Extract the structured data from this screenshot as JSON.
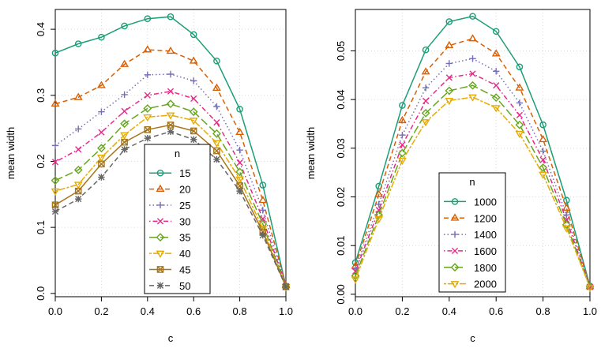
{
  "chart_data": [
    {
      "type": "line",
      "xlabel": "c",
      "ylabel": "mean width",
      "xlim": [
        0,
        1
      ],
      "ylim": [
        -0.005,
        0.43
      ],
      "xticks": [
        "0.0",
        "0.2",
        "0.4",
        "0.6",
        "0.8",
        "1.0"
      ],
      "yticks": [
        "0.0",
        "0.1",
        "0.2",
        "0.3",
        "0.4"
      ],
      "grid": true,
      "legend_title": "n",
      "legend_position": "bottom-center",
      "x": [
        0,
        0.1,
        0.2,
        0.3,
        0.4,
        0.5,
        0.6,
        0.7,
        0.8,
        0.9,
        1.0
      ],
      "series": [
        {
          "name": "15",
          "color": "#1b9e77",
          "marker": "circle",
          "dash": "solid",
          "values": [
            0.364,
            0.378,
            0.388,
            0.405,
            0.416,
            0.419,
            0.392,
            0.352,
            0.279,
            0.164,
            0.011
          ]
        },
        {
          "name": "20",
          "color": "#d95f02",
          "marker": "triangle-up",
          "dash": "dashed",
          "values": [
            0.287,
            0.297,
            0.315,
            0.347,
            0.369,
            0.367,
            0.352,
            0.311,
            0.244,
            0.141,
            0.012
          ]
        },
        {
          "name": "25",
          "color": "#7570b3",
          "marker": "plus",
          "dash": "dotted",
          "values": [
            0.224,
            0.249,
            0.275,
            0.301,
            0.331,
            0.332,
            0.322,
            0.283,
            0.217,
            0.126,
            0.012
          ]
        },
        {
          "name": "30",
          "color": "#e7298a",
          "marker": "cross",
          "dash": "dotdash",
          "values": [
            0.199,
            0.218,
            0.244,
            0.276,
            0.3,
            0.306,
            0.295,
            0.259,
            0.198,
            0.113,
            0.011
          ]
        },
        {
          "name": "35",
          "color": "#66a61e",
          "marker": "diamond",
          "dash": "longdash",
          "values": [
            0.171,
            0.187,
            0.22,
            0.257,
            0.28,
            0.287,
            0.275,
            0.242,
            0.184,
            0.105,
            0.01
          ]
        },
        {
          "name": "40",
          "color": "#e6ab02",
          "marker": "triangle-down",
          "dash": "twodash",
          "values": [
            0.155,
            0.165,
            0.206,
            0.24,
            0.267,
            0.27,
            0.262,
            0.228,
            0.173,
            0.098,
            0.01
          ]
        },
        {
          "name": "45",
          "color": "#a6761d",
          "marker": "square-cross",
          "dash": "solid",
          "values": [
            0.134,
            0.155,
            0.196,
            0.229,
            0.248,
            0.255,
            0.246,
            0.216,
            0.163,
            0.093,
            0.01
          ]
        },
        {
          "name": "50",
          "color": "#666666",
          "marker": "asterisk",
          "dash": "dashed",
          "values": [
            0.124,
            0.143,
            0.176,
            0.218,
            0.235,
            0.245,
            0.233,
            0.203,
            0.155,
            0.088,
            0.01
          ]
        }
      ]
    },
    {
      "type": "line",
      "xlabel": "c",
      "ylabel": "mean width",
      "xlim": [
        0,
        1
      ],
      "ylim": [
        -0.0005,
        0.0585
      ],
      "xticks": [
        "0.0",
        "0.2",
        "0.4",
        "0.6",
        "0.8",
        "1.0"
      ],
      "yticks": [
        "0.00",
        "0.01",
        "0.02",
        "0.03",
        "0.04",
        "0.05"
      ],
      "grid": true,
      "legend_title": "n",
      "legend_position": "bottom-center",
      "x": [
        0,
        0.1,
        0.2,
        0.3,
        0.4,
        0.5,
        0.6,
        0.7,
        0.8,
        0.9,
        1.0
      ],
      "series": [
        {
          "name": "1000",
          "color": "#1b9e77",
          "marker": "circle",
          "dash": "solid",
          "values": [
            0.0065,
            0.0222,
            0.0388,
            0.0502,
            0.056,
            0.0571,
            0.054,
            0.0467,
            0.0348,
            0.0193,
            0.0017
          ]
        },
        {
          "name": "1200",
          "color": "#d95f02",
          "marker": "triangle-up",
          "dash": "dashed",
          "values": [
            0.0058,
            0.0205,
            0.0357,
            0.0457,
            0.0511,
            0.0525,
            0.0494,
            0.0424,
            0.0318,
            0.0177,
            0.0016
          ]
        },
        {
          "name": "1400",
          "color": "#7570b3",
          "marker": "plus",
          "dash": "dotted",
          "values": [
            0.0052,
            0.0185,
            0.0327,
            0.0424,
            0.0474,
            0.0484,
            0.0458,
            0.0393,
            0.0294,
            0.0163,
            0.0016
          ]
        },
        {
          "name": "1600",
          "color": "#e7298a",
          "marker": "cross",
          "dash": "dotdash",
          "values": [
            0.0047,
            0.0173,
            0.0307,
            0.0397,
            0.0445,
            0.0453,
            0.0429,
            0.0368,
            0.0276,
            0.0153,
            0.0015
          ]
        },
        {
          "name": "1800",
          "color": "#66a61e",
          "marker": "diamond",
          "dash": "longdash",
          "values": [
            0.0038,
            0.0163,
            0.029,
            0.0372,
            0.0418,
            0.0429,
            0.0404,
            0.0348,
            0.026,
            0.0143,
            0.0015
          ]
        },
        {
          "name": "2000",
          "color": "#e6ab02",
          "marker": "triangle-down",
          "dash": "twodash",
          "values": [
            0.0031,
            0.0155,
            0.0275,
            0.0354,
            0.0398,
            0.0405,
            0.0383,
            0.033,
            0.0246,
            0.0136,
            0.0014
          ]
        }
      ]
    }
  ]
}
